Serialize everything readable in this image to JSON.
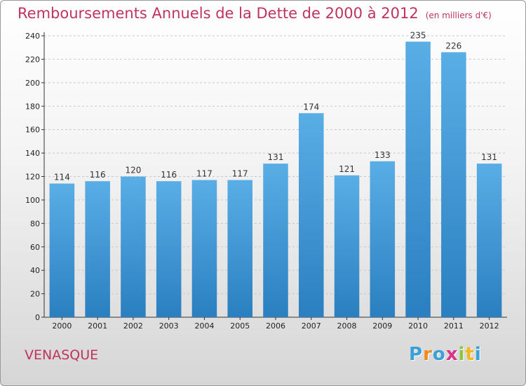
{
  "chart_data": {
    "type": "bar",
    "title": "Remboursements Annuels de la Dette de 2000 à 2012",
    "unit_label": "(en milliers d'€)",
    "categories": [
      "2000",
      "2001",
      "2002",
      "2003",
      "2004",
      "2005",
      "2006",
      "2007",
      "2008",
      "2009",
      "2010",
      "2011",
      "2012"
    ],
    "values": [
      114,
      116,
      120,
      116,
      117,
      117,
      131,
      174,
      121,
      133,
      235,
      226,
      131
    ],
    "ylim": [
      0,
      240
    ],
    "yticks": [
      0,
      20,
      40,
      60,
      80,
      100,
      120,
      140,
      160,
      180,
      200,
      220,
      240
    ],
    "grid": true,
    "legend": "none",
    "bar_color_top": "#5aaee6",
    "bar_color_bottom": "#2a7fc0"
  },
  "footer": {
    "city": "VENASQUE",
    "logo_letters": [
      "P",
      "r",
      "o",
      "x",
      "i",
      "t",
      "i"
    ],
    "logo_colors": [
      "#3aa0d8",
      "#f08a1c",
      "#3aa0d8",
      "#d8338a",
      "#8cc63e",
      "#f0b81c",
      "#3aa0d8"
    ]
  }
}
